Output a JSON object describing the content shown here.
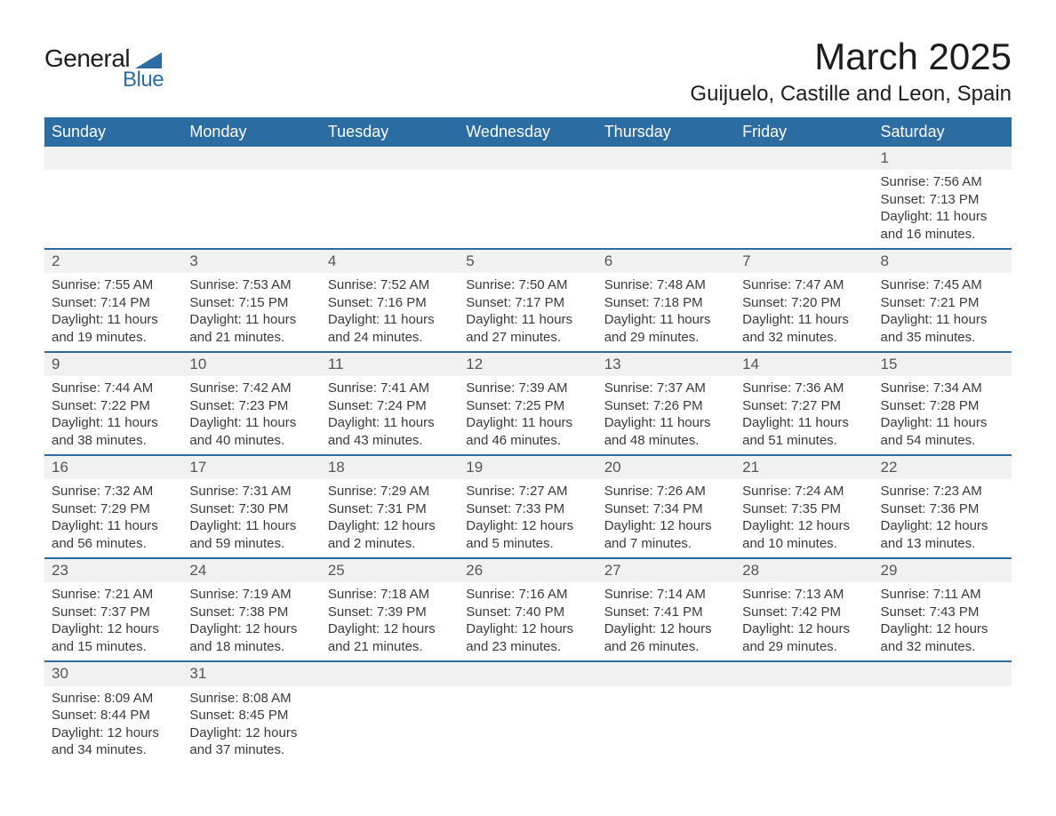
{
  "logo": {
    "general": "General",
    "blue": "Blue",
    "shape_color": "#2b6ca3"
  },
  "title": "March 2025",
  "location": "Guijuelo, Castille and Leon, Spain",
  "header_bg": "#2b6ca3",
  "header_fg": "#ffffff",
  "alt_bg": "#f1f1f1",
  "divider_color": "#2b6ca3",
  "text_color": "#3a3a3a",
  "font_family": "Arial, Helvetica, sans-serif",
  "days_of_week": [
    "Sunday",
    "Monday",
    "Tuesday",
    "Wednesday",
    "Thursday",
    "Friday",
    "Saturday"
  ],
  "weeks": [
    [
      null,
      null,
      null,
      null,
      null,
      null,
      {
        "n": "1",
        "sunrise": "Sunrise: 7:56 AM",
        "sunset": "Sunset: 7:13 PM",
        "dl1": "Daylight: 11 hours",
        "dl2": "and 16 minutes."
      }
    ],
    [
      {
        "n": "2",
        "sunrise": "Sunrise: 7:55 AM",
        "sunset": "Sunset: 7:14 PM",
        "dl1": "Daylight: 11 hours",
        "dl2": "and 19 minutes."
      },
      {
        "n": "3",
        "sunrise": "Sunrise: 7:53 AM",
        "sunset": "Sunset: 7:15 PM",
        "dl1": "Daylight: 11 hours",
        "dl2": "and 21 minutes."
      },
      {
        "n": "4",
        "sunrise": "Sunrise: 7:52 AM",
        "sunset": "Sunset: 7:16 PM",
        "dl1": "Daylight: 11 hours",
        "dl2": "and 24 minutes."
      },
      {
        "n": "5",
        "sunrise": "Sunrise: 7:50 AM",
        "sunset": "Sunset: 7:17 PM",
        "dl1": "Daylight: 11 hours",
        "dl2": "and 27 minutes."
      },
      {
        "n": "6",
        "sunrise": "Sunrise: 7:48 AM",
        "sunset": "Sunset: 7:18 PM",
        "dl1": "Daylight: 11 hours",
        "dl2": "and 29 minutes."
      },
      {
        "n": "7",
        "sunrise": "Sunrise: 7:47 AM",
        "sunset": "Sunset: 7:20 PM",
        "dl1": "Daylight: 11 hours",
        "dl2": "and 32 minutes."
      },
      {
        "n": "8",
        "sunrise": "Sunrise: 7:45 AM",
        "sunset": "Sunset: 7:21 PM",
        "dl1": "Daylight: 11 hours",
        "dl2": "and 35 minutes."
      }
    ],
    [
      {
        "n": "9",
        "sunrise": "Sunrise: 7:44 AM",
        "sunset": "Sunset: 7:22 PM",
        "dl1": "Daylight: 11 hours",
        "dl2": "and 38 minutes."
      },
      {
        "n": "10",
        "sunrise": "Sunrise: 7:42 AM",
        "sunset": "Sunset: 7:23 PM",
        "dl1": "Daylight: 11 hours",
        "dl2": "and 40 minutes."
      },
      {
        "n": "11",
        "sunrise": "Sunrise: 7:41 AM",
        "sunset": "Sunset: 7:24 PM",
        "dl1": "Daylight: 11 hours",
        "dl2": "and 43 minutes."
      },
      {
        "n": "12",
        "sunrise": "Sunrise: 7:39 AM",
        "sunset": "Sunset: 7:25 PM",
        "dl1": "Daylight: 11 hours",
        "dl2": "and 46 minutes."
      },
      {
        "n": "13",
        "sunrise": "Sunrise: 7:37 AM",
        "sunset": "Sunset: 7:26 PM",
        "dl1": "Daylight: 11 hours",
        "dl2": "and 48 minutes."
      },
      {
        "n": "14",
        "sunrise": "Sunrise: 7:36 AM",
        "sunset": "Sunset: 7:27 PM",
        "dl1": "Daylight: 11 hours",
        "dl2": "and 51 minutes."
      },
      {
        "n": "15",
        "sunrise": "Sunrise: 7:34 AM",
        "sunset": "Sunset: 7:28 PM",
        "dl1": "Daylight: 11 hours",
        "dl2": "and 54 minutes."
      }
    ],
    [
      {
        "n": "16",
        "sunrise": "Sunrise: 7:32 AM",
        "sunset": "Sunset: 7:29 PM",
        "dl1": "Daylight: 11 hours",
        "dl2": "and 56 minutes."
      },
      {
        "n": "17",
        "sunrise": "Sunrise: 7:31 AM",
        "sunset": "Sunset: 7:30 PM",
        "dl1": "Daylight: 11 hours",
        "dl2": "and 59 minutes."
      },
      {
        "n": "18",
        "sunrise": "Sunrise: 7:29 AM",
        "sunset": "Sunset: 7:31 PM",
        "dl1": "Daylight: 12 hours",
        "dl2": "and 2 minutes."
      },
      {
        "n": "19",
        "sunrise": "Sunrise: 7:27 AM",
        "sunset": "Sunset: 7:33 PM",
        "dl1": "Daylight: 12 hours",
        "dl2": "and 5 minutes."
      },
      {
        "n": "20",
        "sunrise": "Sunrise: 7:26 AM",
        "sunset": "Sunset: 7:34 PM",
        "dl1": "Daylight: 12 hours",
        "dl2": "and 7 minutes."
      },
      {
        "n": "21",
        "sunrise": "Sunrise: 7:24 AM",
        "sunset": "Sunset: 7:35 PM",
        "dl1": "Daylight: 12 hours",
        "dl2": "and 10 minutes."
      },
      {
        "n": "22",
        "sunrise": "Sunrise: 7:23 AM",
        "sunset": "Sunset: 7:36 PM",
        "dl1": "Daylight: 12 hours",
        "dl2": "and 13 minutes."
      }
    ],
    [
      {
        "n": "23",
        "sunrise": "Sunrise: 7:21 AM",
        "sunset": "Sunset: 7:37 PM",
        "dl1": "Daylight: 12 hours",
        "dl2": "and 15 minutes."
      },
      {
        "n": "24",
        "sunrise": "Sunrise: 7:19 AM",
        "sunset": "Sunset: 7:38 PM",
        "dl1": "Daylight: 12 hours",
        "dl2": "and 18 minutes."
      },
      {
        "n": "25",
        "sunrise": "Sunrise: 7:18 AM",
        "sunset": "Sunset: 7:39 PM",
        "dl1": "Daylight: 12 hours",
        "dl2": "and 21 minutes."
      },
      {
        "n": "26",
        "sunrise": "Sunrise: 7:16 AM",
        "sunset": "Sunset: 7:40 PM",
        "dl1": "Daylight: 12 hours",
        "dl2": "and 23 minutes."
      },
      {
        "n": "27",
        "sunrise": "Sunrise: 7:14 AM",
        "sunset": "Sunset: 7:41 PM",
        "dl1": "Daylight: 12 hours",
        "dl2": "and 26 minutes."
      },
      {
        "n": "28",
        "sunrise": "Sunrise: 7:13 AM",
        "sunset": "Sunset: 7:42 PM",
        "dl1": "Daylight: 12 hours",
        "dl2": "and 29 minutes."
      },
      {
        "n": "29",
        "sunrise": "Sunrise: 7:11 AM",
        "sunset": "Sunset: 7:43 PM",
        "dl1": "Daylight: 12 hours",
        "dl2": "and 32 minutes."
      }
    ],
    [
      {
        "n": "30",
        "sunrise": "Sunrise: 8:09 AM",
        "sunset": "Sunset: 8:44 PM",
        "dl1": "Daylight: 12 hours",
        "dl2": "and 34 minutes."
      },
      {
        "n": "31",
        "sunrise": "Sunrise: 8:08 AM",
        "sunset": "Sunset: 8:45 PM",
        "dl1": "Daylight: 12 hours",
        "dl2": "and 37 minutes."
      },
      null,
      null,
      null,
      null,
      null
    ]
  ]
}
